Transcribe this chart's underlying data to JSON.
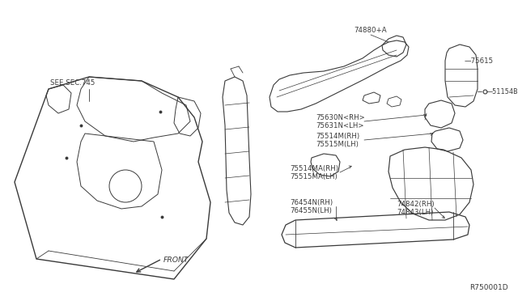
{
  "bg_color": "#ffffff",
  "ref_code": "R750001D",
  "labels": {
    "see_sec": "SEE SEC.745",
    "front": "FRONT",
    "p74880": "74880+A",
    "p75615": "75615",
    "p51154B": "51154B",
    "p75630": "75630N<RH>",
    "p75631": "75631N<LH>",
    "p75514M": "75514M(RH)",
    "p75515M": "75515M(LH)",
    "p75514MA": "75514MA(RH)",
    "p75515MA": "75515MA(LH)",
    "p74842": "74842(RH)",
    "p74843": "74843(LH)",
    "p76454": "76454N(RH)",
    "p76455": "76455N(LH)"
  },
  "font_size_label": 6.2,
  "font_size_ref": 6.5,
  "line_color": "#3a3a3a",
  "text_color": "#3a3a3a"
}
